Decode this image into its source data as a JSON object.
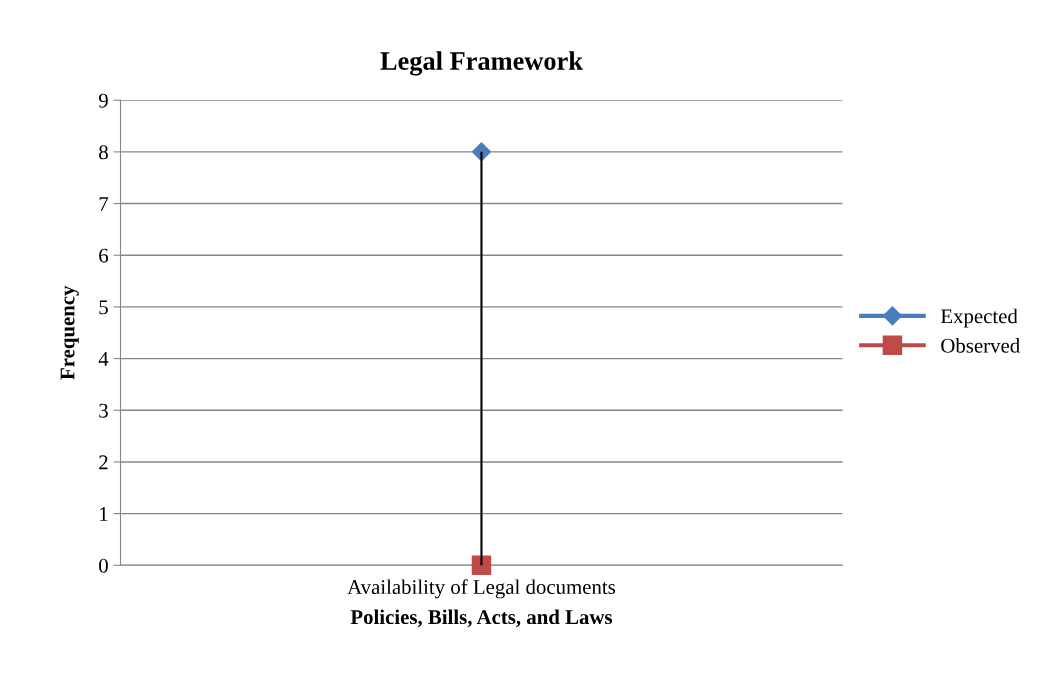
{
  "chart_data": {
    "type": "line",
    "title": "Legal Framework",
    "xlabel": "Policies, Bills, Acts, and Laws",
    "ylabel": "Frequency",
    "categories": [
      "Availability of Legal documents"
    ],
    "series": [
      {
        "name": "Expected",
        "color": "#4a7ebb",
        "values": [
          8
        ],
        "marker": "diamond"
      },
      {
        "name": "Observed",
        "color": "#be4b48",
        "values": [
          0
        ],
        "marker": "square",
        "errors": [
          [
            0,
            8
          ]
        ]
      }
    ],
    "ylim": [
      0,
      9
    ],
    "yticks": [
      0,
      1,
      2,
      3,
      4,
      5,
      6,
      7,
      8,
      9
    ],
    "grid": "y",
    "legend": "right"
  }
}
